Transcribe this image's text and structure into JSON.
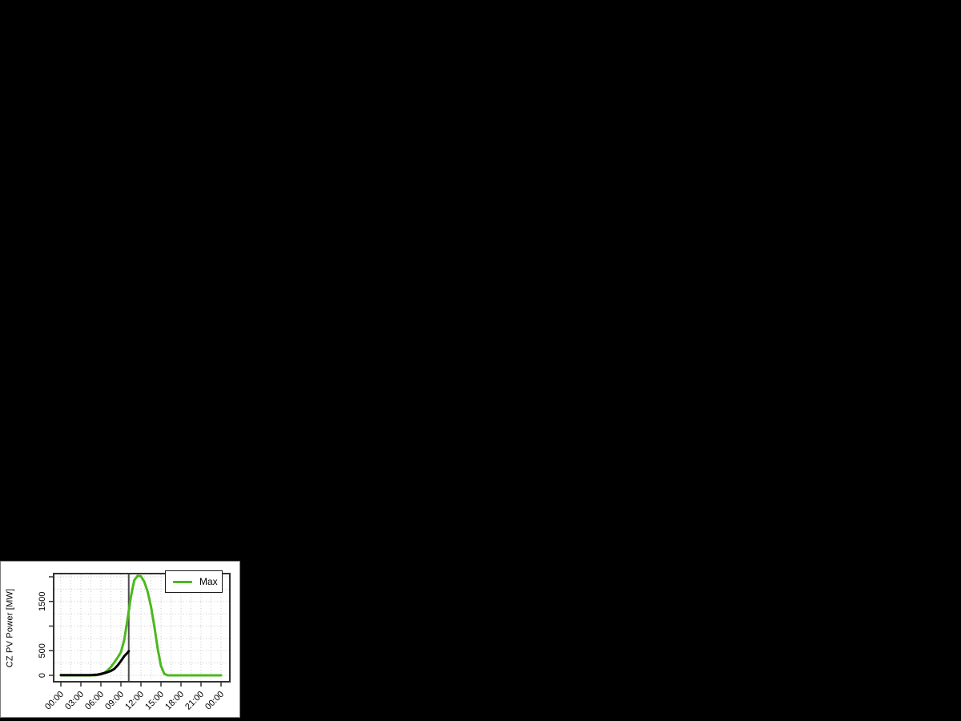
{
  "window": {
    "background_color": "#000000",
    "panel_background_color": "#ffffff",
    "panel_border_color": "#7d7d7d"
  },
  "chart_data": {
    "type": "line",
    "title": "",
    "xlabel": "",
    "ylabel": "CZ PV Power [MW]",
    "x_unit": "time of day",
    "xlim_hours": [
      0,
      24
    ],
    "ylim": [
      0,
      2050
    ],
    "grid": {
      "show": true,
      "style": "dotted",
      "color": "#c9c9c9",
      "x_step_hours": 1.5,
      "y_step_mw": 250
    },
    "x_ticks": [
      {
        "hour": 0,
        "label": "00:00"
      },
      {
        "hour": 3,
        "label": "03:00"
      },
      {
        "hour": 6,
        "label": "06:00"
      },
      {
        "hour": 9,
        "label": "09:00"
      },
      {
        "hour": 12,
        "label": "12:00"
      },
      {
        "hour": 15,
        "label": "15:00"
      },
      {
        "hour": 18,
        "label": "18:00"
      },
      {
        "hour": 21,
        "label": "21:00"
      },
      {
        "hour": 24,
        "label": "00:00"
      }
    ],
    "y_ticks": [
      {
        "value": 0,
        "label": "0"
      },
      {
        "value": 500,
        "label": "500"
      },
      {
        "value": 1000,
        "label": ""
      },
      {
        "value": 1500,
        "label": "1500"
      },
      {
        "value": 2000,
        "label": ""
      }
    ],
    "now_marker": {
      "hour": 10.17,
      "color": "#4d4d4d"
    },
    "legend": {
      "position": "top-right",
      "entries": [
        {
          "label": "Max",
          "color": "#4cb81e"
        }
      ]
    },
    "series": [
      {
        "name": "Max",
        "color": "#4cb81e",
        "line_width": 3,
        "x": [
          0,
          0.5,
          1,
          1.5,
          2,
          2.5,
          3,
          3.5,
          4,
          4.5,
          5,
          5.5,
          6,
          6.5,
          7,
          7.5,
          8,
          8.5,
          9,
          9.5,
          10,
          10.5,
          11,
          11.5,
          12,
          12.5,
          13,
          13.5,
          14,
          14.5,
          15,
          15.5,
          16,
          16.5,
          17,
          17.5,
          18,
          18.5,
          19,
          19.5,
          20,
          20.5,
          21,
          21.5,
          22,
          22.5,
          23,
          23.5,
          24
        ],
        "y": [
          0,
          0,
          0,
          0,
          0,
          0,
          0,
          0,
          0,
          0,
          0,
          5,
          20,
          50,
          100,
          170,
          260,
          360,
          470,
          720,
          1150,
          1600,
          1930,
          2020,
          2010,
          1900,
          1700,
          1400,
          1000,
          550,
          190,
          30,
          0,
          0,
          0,
          0,
          0,
          0,
          0,
          0,
          0,
          0,
          0,
          0,
          0,
          0,
          0,
          0,
          0
        ]
      },
      {
        "name": "",
        "color": "#000000",
        "line_width": 3,
        "x": [
          0,
          0.5,
          1,
          1.5,
          2,
          2.5,
          3,
          3.5,
          4,
          4.5,
          5,
          5.5,
          6,
          6.5,
          7,
          7.5,
          8,
          8.5,
          9,
          9.5,
          10,
          10.17
        ],
        "y": [
          5,
          5,
          5,
          5,
          5,
          5,
          5,
          5,
          5,
          5,
          10,
          15,
          30,
          45,
          65,
          90,
          130,
          200,
          290,
          390,
          460,
          490
        ]
      }
    ]
  }
}
